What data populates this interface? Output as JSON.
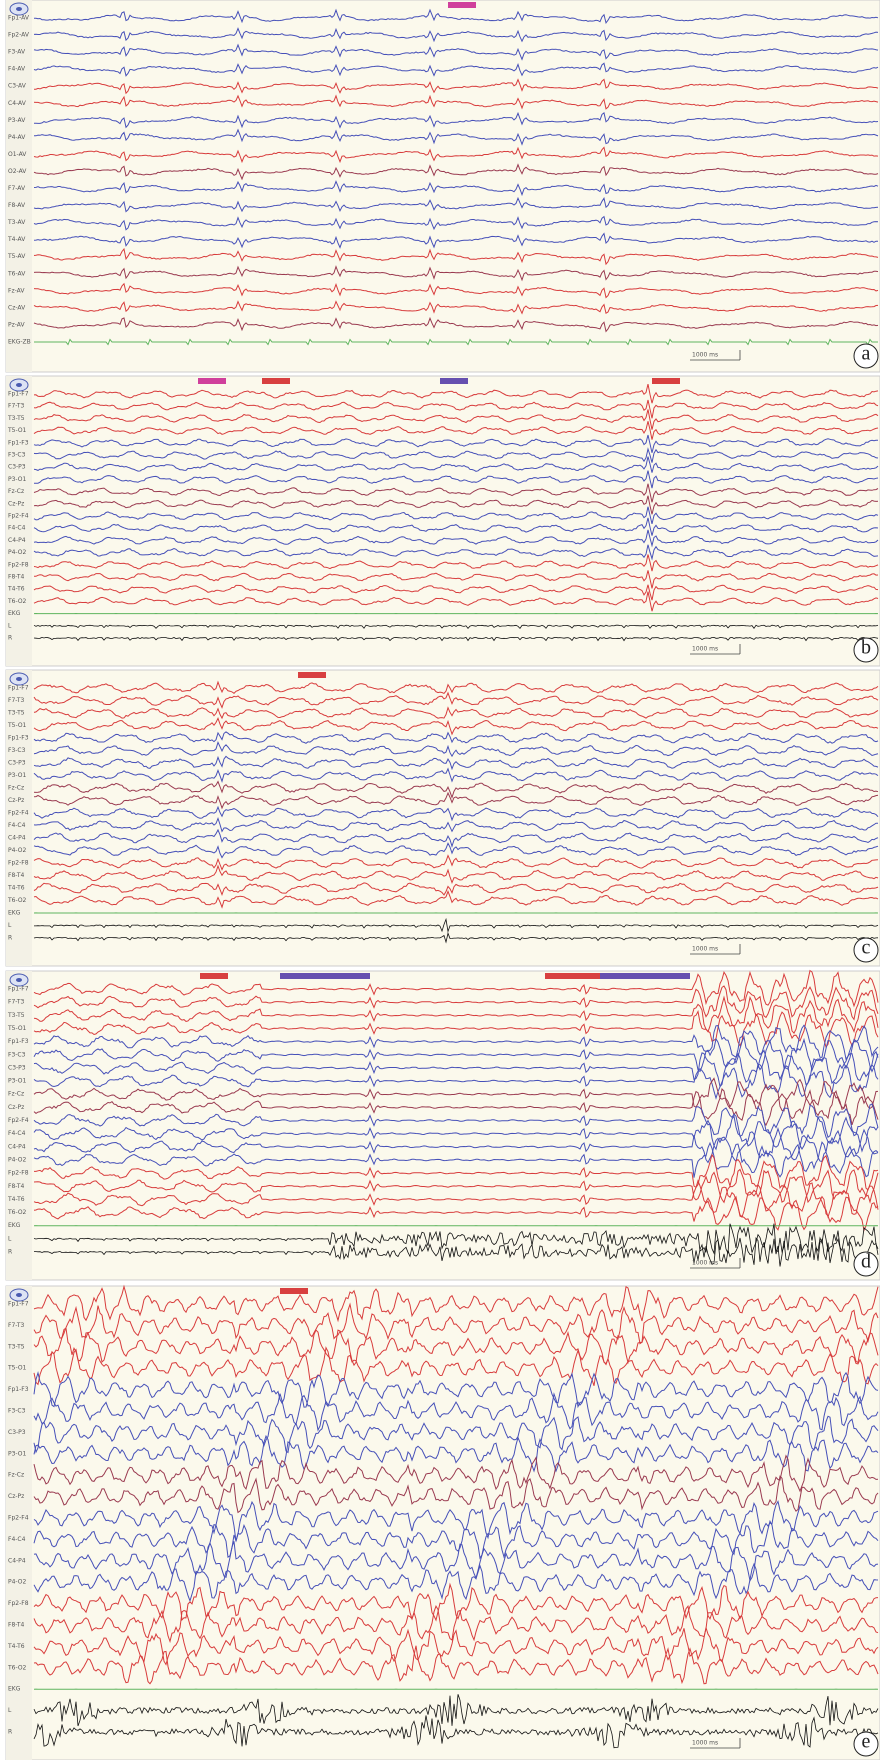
{
  "panels": [
    {
      "label": "a",
      "scale": "1000 ms",
      "channels": [
        "Fp1-AV",
        "Fp2-AV",
        "F3-AV",
        "F4-AV",
        "C3-AV",
        "C4-AV",
        "P3-AV",
        "P4-AV",
        "O1-AV",
        "O2-AV",
        "F7-AV",
        "F8-AV",
        "T3-AV",
        "T4-AV",
        "T5-AV",
        "T6-AV",
        "Fz-AV",
        "Cz-AV",
        "Pz-AV",
        "EKG-ZB"
      ]
    },
    {
      "label": "b",
      "scale": "1000 ms",
      "channels": [
        "Fp1-F7",
        "F7-T3",
        "T3-T5",
        "T5-O1",
        "Fp1-F3",
        "F3-C3",
        "C3-P3",
        "P3-O1",
        "Fz-Cz",
        "Cz-Pz",
        "Fp2-F4",
        "F4-C4",
        "C4-P4",
        "P4-O2",
        "Fp2-F8",
        "F8-T4",
        "T4-T6",
        "T6-O2",
        "EKG",
        "L",
        "R"
      ]
    },
    {
      "label": "c",
      "scale": "1000 ms",
      "channels": [
        "Fp1-F7",
        "F7-T3",
        "T3-T5",
        "T5-O1",
        "Fp1-F3",
        "F3-C3",
        "C3-P3",
        "P3-O1",
        "Fz-Cz",
        "Cz-Pz",
        "Fp2-F4",
        "F4-C4",
        "C4-P4",
        "P4-O2",
        "Fp2-F8",
        "F8-T4",
        "T4-T6",
        "T6-O2",
        "EKG",
        "L",
        "R"
      ]
    },
    {
      "label": "d",
      "scale": "1000 ms",
      "channels": [
        "Fp1-F7",
        "F7-T3",
        "T3-T5",
        "T5-O1",
        "Fp1-F3",
        "F3-C3",
        "C3-P3",
        "P3-O1",
        "Fz-Cz",
        "Cz-Pz",
        "Fp2-F4",
        "F4-C4",
        "C4-P4",
        "P4-O2",
        "Fp2-F8",
        "F8-T4",
        "T4-T6",
        "T6-O2",
        "EKG",
        "L",
        "R"
      ]
    },
    {
      "label": "e",
      "scale": "1000 ms",
      "channels": [
        "Fp1-F7",
        "F7-T3",
        "T3-T5",
        "T5-O1",
        "Fp1-F3",
        "F3-C3",
        "C3-P3",
        "P3-O1",
        "Fz-Cz",
        "Cz-Pz",
        "Fp2-F4",
        "F4-C4",
        "C4-P4",
        "P4-O2",
        "Fp2-F8",
        "F8-T4",
        "T4-T6",
        "T6-O2",
        "EKG",
        "L",
        "R"
      ]
    }
  ]
}
